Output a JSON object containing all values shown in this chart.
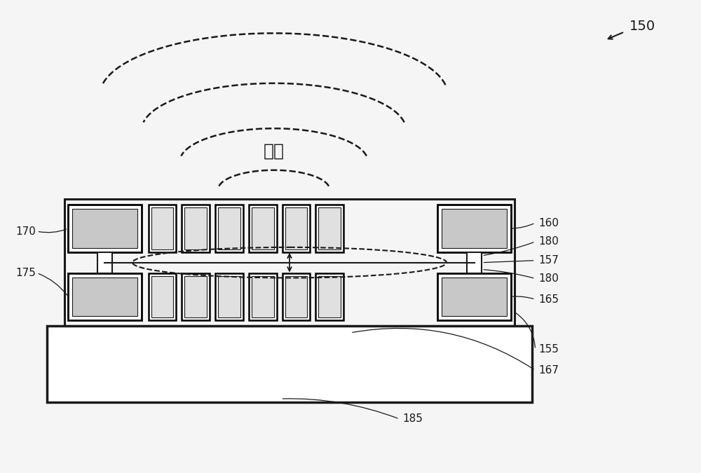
{
  "bg_color": "#f5f5f5",
  "line_color": "#1a1a1a",
  "gray_fill": "#c8c8c8",
  "light_gray": "#e0e0e0",
  "white": "#ffffff",
  "label_shengbo": "声波",
  "fs_label": 16,
  "fs_ref": 11
}
